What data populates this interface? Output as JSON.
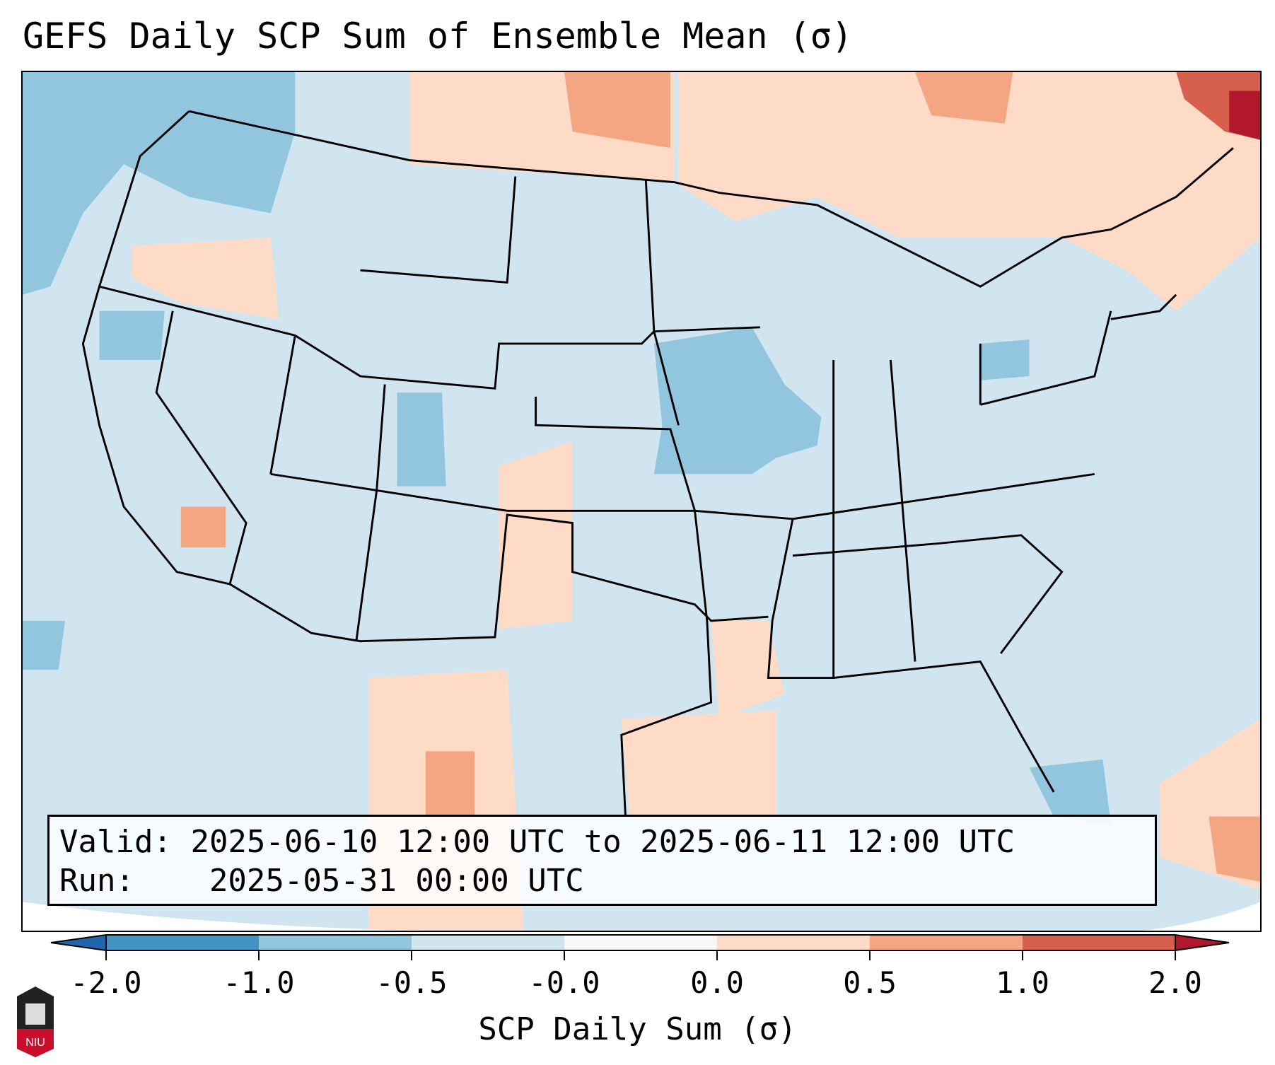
{
  "title": "GEFS Daily SCP Sum of Ensemble Mean (σ)",
  "info": {
    "valid_label": "Valid:",
    "valid_value": "2025-06-10 12:00 UTC to 2025-06-11 12:00 UTC",
    "run_label": "Run:",
    "run_value": "2025-05-31 00:00 UTC"
  },
  "colorbar": {
    "label": "SCP Daily Sum (σ)",
    "ticks": [
      "-2.0",
      "-1.0",
      "-0.5",
      "-0.0",
      "0.0",
      "0.5",
      "1.0",
      "2.0"
    ],
    "colors": [
      "#2166ac",
      "#4393c3",
      "#92c5de",
      "#d1e5f0",
      "#f7f7f7",
      "#fddbc7",
      "#f4a582",
      "#d6604d",
      "#b2182b"
    ]
  },
  "logo": {
    "text": "NIU"
  }
}
